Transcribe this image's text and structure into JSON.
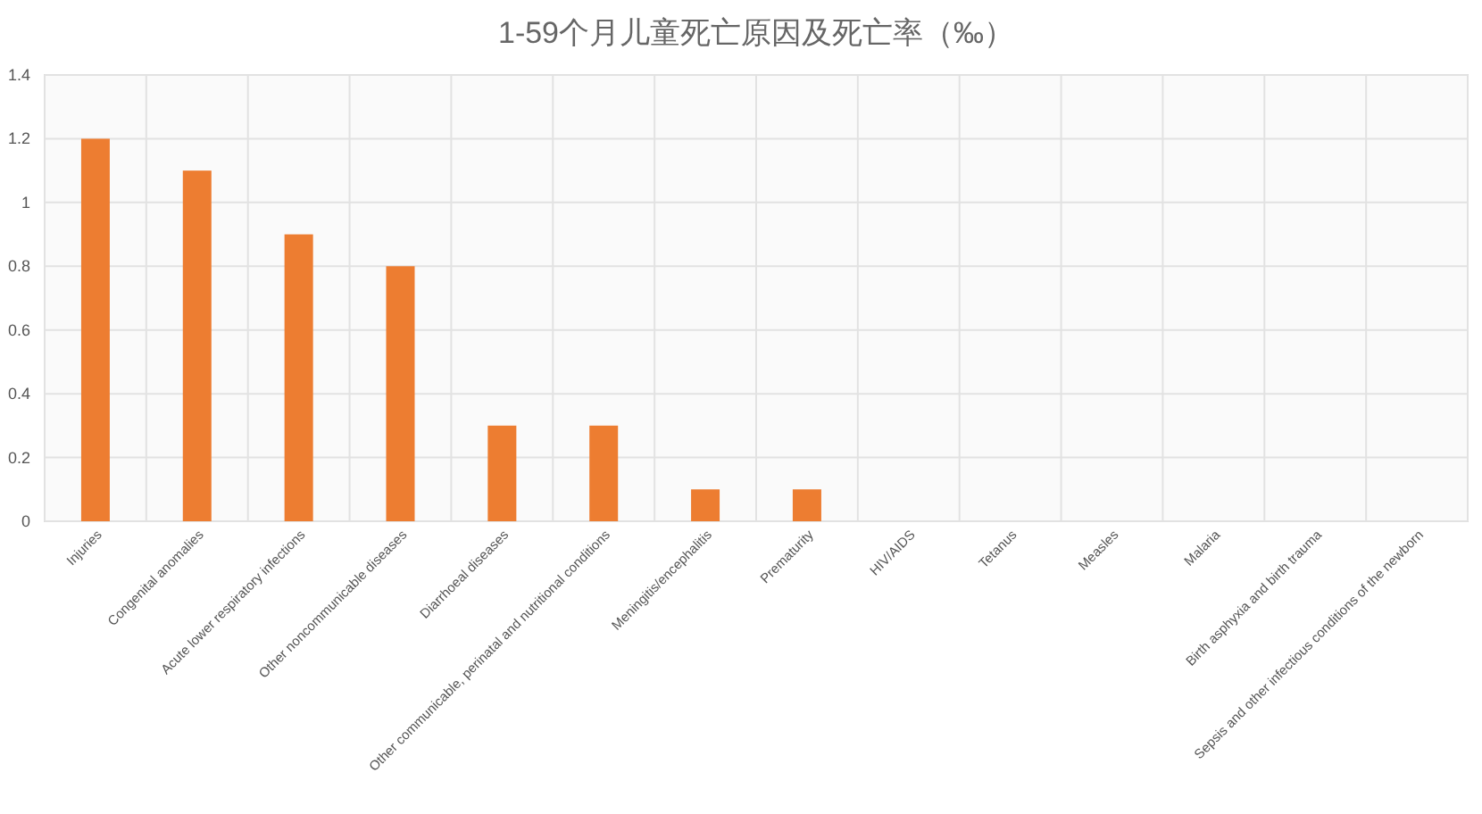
{
  "chart_data": {
    "type": "bar",
    "title": "1-59个月儿童死亡原因及死亡率（‰）",
    "categories": [
      "Injuries",
      "Congenital anomalies",
      "Acute lower respiratory infections",
      "Other noncommunicable diseases",
      "Diarrhoeal diseases",
      "Other communicable, perinatal and nutritional conditions",
      "Meningitis/encephalitis",
      "Prematurity",
      "HIV/AIDS",
      "Tetanus",
      "Measles",
      "Malaria",
      "Birth asphyxia and birth trauma",
      "Sepsis and other infectious conditions of the newborn"
    ],
    "values": [
      1.2,
      1.1,
      0.9,
      0.8,
      0.3,
      0.3,
      0.1,
      0.1,
      0,
      0,
      0,
      0,
      0,
      0
    ],
    "color": "#ed7d31",
    "ylim": [
      0,
      1.4
    ],
    "yticks": [
      0,
      0.2,
      0.4,
      0.6,
      0.8,
      1,
      1.2,
      1.4
    ],
    "grid": true
  }
}
